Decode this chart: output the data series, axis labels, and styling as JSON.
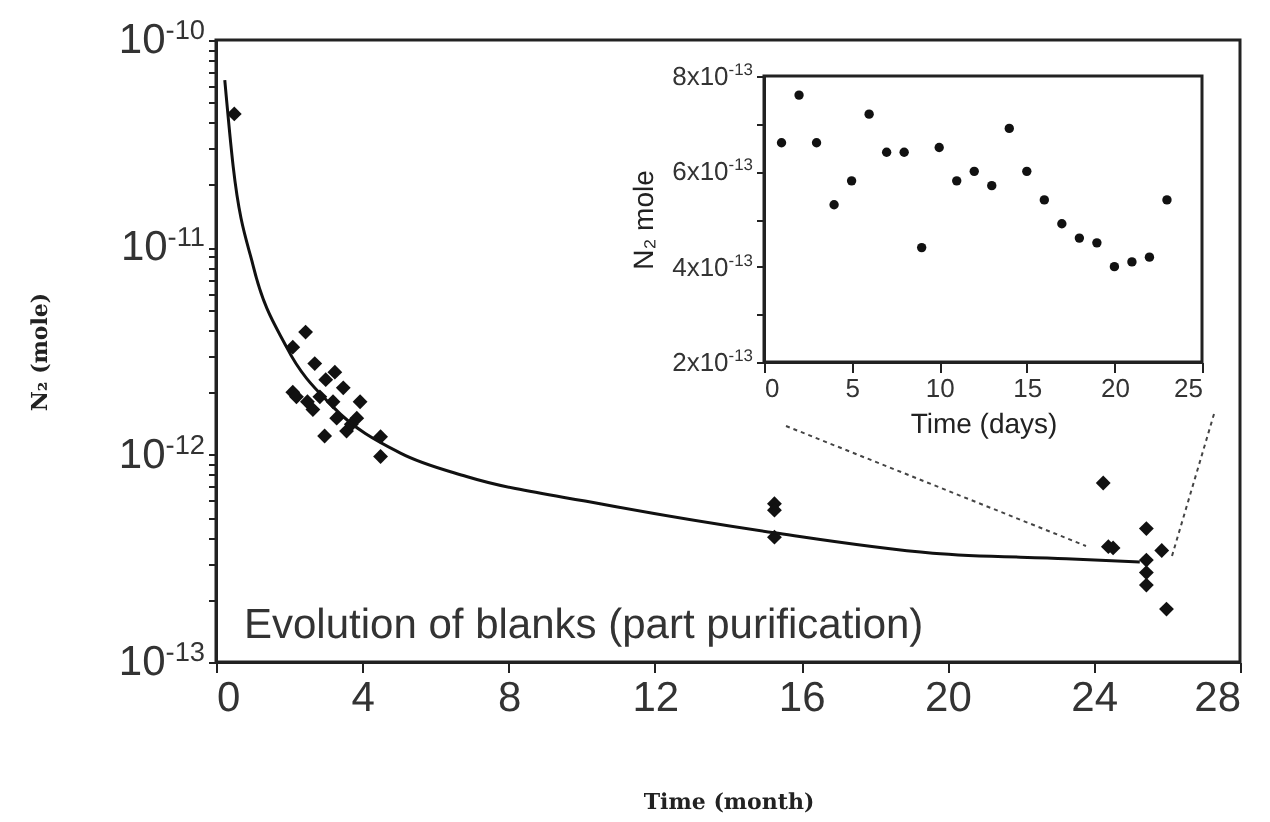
{
  "chart_data": [
    {
      "type": "scatter",
      "xlabel": "Time (month)",
      "ylabel": "N₂ (mole)",
      "annotations": [
        "Evolution of blanks (part purification)"
      ],
      "log": "y",
      "marker": "diamond",
      "xlim": [
        0,
        28
      ],
      "xticks": [
        0,
        4,
        8,
        12,
        16,
        20,
        24,
        28
      ],
      "ylim": [
        1e-13,
        1e-10
      ],
      "yticks": [
        {
          "value": 1e-13,
          "label": "10$^{-13}$"
        },
        {
          "value": 2e-13,
          "label": null
        },
        {
          "value": 3e-13,
          "label": null
        },
        {
          "value": 4e-13,
          "label": null
        },
        {
          "value": 5e-13,
          "label": null
        },
        {
          "value": 6e-13,
          "label": null
        },
        {
          "value": 7e-13,
          "label": null
        },
        {
          "value": 8e-13,
          "label": null
        },
        {
          "value": 9e-13,
          "label": null
        },
        {
          "value": 1e-12,
          "label": "10$^{-12}$"
        },
        {
          "value": 2e-12,
          "label": null
        },
        {
          "value": 3e-12,
          "label": null
        },
        {
          "value": 4e-12,
          "label": null
        },
        {
          "value": 5e-12,
          "label": null
        },
        {
          "value": 6e-12,
          "label": null
        },
        {
          "value": 7e-12,
          "label": null
        },
        {
          "value": 8e-12,
          "label": null
        },
        {
          "value": 9e-12,
          "label": null
        },
        {
          "value": 1e-11,
          "label": "10$^{-11}$"
        },
        {
          "value": 2e-11,
          "label": null
        },
        {
          "value": 3e-11,
          "label": null
        },
        {
          "value": 4e-11,
          "label": null
        },
        {
          "value": 5e-11,
          "label": null
        },
        {
          "value": 6e-11,
          "label": null
        },
        {
          "value": 7e-11,
          "label": null
        },
        {
          "value": 8e-11,
          "label": null
        },
        {
          "value": 9e-11,
          "label": null
        },
        {
          "value": 1e-10,
          "label": "10$^{-10}$"
        }
      ],
      "series": [
        {
          "type": "scatter",
          "color": "#111111",
          "x": [
            0.5,
            2.1,
            2.45,
            2.1,
            2.2,
            2.5,
            2.7,
            3.0,
            3.25,
            2.65,
            2.97,
            3.2,
            3.48,
            3.3,
            3.57,
            3.85,
            3.94,
            3.7,
            2.84,
            4.5,
            4.5,
            15.27,
            15.27,
            15.27,
            24.26,
            24.4,
            24.53,
            25.44,
            25.44,
            25.44,
            25.44,
            25.86,
            25.99
          ],
          "values": [
            4.4e-11,
            3.3e-12,
            3.9e-12,
            2e-12,
            1.9e-12,
            1.8e-12,
            2.75e-12,
            2.3e-12,
            2.5e-12,
            1.65e-12,
            1.23e-12,
            1.8e-12,
            2.1e-12,
            1.5e-12,
            1.3e-12,
            1.5e-12,
            1.8e-12,
            1.4e-12,
            1.9e-12,
            1.22e-12,
            9.8e-13,
            5.8e-13,
            5.4e-13,
            4e-13,
            7.3e-13,
            3.6e-13,
            3.55e-13,
            4.4e-13,
            3.1e-13,
            2.7e-13,
            2.35e-13,
            3.45e-13,
            1.8e-13
          ]
        },
        {
          "type": "line",
          "marker": "none",
          "color": "#111111",
          "x": [
            0.24,
            0.47,
            1.02,
            1.93,
            3.2,
            5.03,
            6.85,
            10.5,
            15.27,
            19.6,
            23.25,
            25.26
          ],
          "values": [
            6.4e-11,
            2.45e-11,
            8.1e-12,
            3.3e-12,
            1.7e-12,
            1.02e-12,
            7.85e-13,
            5.8e-13,
            4.2e-13,
            3.35e-13,
            3.15e-13,
            3.04e-13
          ]
        }
      ]
    },
    {
      "type": "scatter",
      "xlabel": "Time (days)",
      "ylabel": "N₂ mole",
      "marker": "circle",
      "xlim": [
        0,
        25
      ],
      "xticks": [
        0,
        5,
        10,
        15,
        20,
        25
      ],
      "ylim": [
        2e-13,
        8e-13
      ],
      "yticks": [
        {
          "value": 2e-13,
          "label": "2x10$^{-13}$"
        },
        {
          "value": 3e-13,
          "label": null
        },
        {
          "value": 4e-13,
          "label": "4x10$^{-13}$"
        },
        {
          "value": 5e-13,
          "label": null
        },
        {
          "value": 6e-13,
          "label": "6x10$^{-13}$"
        },
        {
          "value": 7e-13,
          "label": null
        },
        {
          "value": 8e-13,
          "label": "8x10$^{-13}$"
        }
      ],
      "series": [
        {
          "color": "#111111",
          "x": [
            1,
            2,
            3,
            4,
            5,
            6,
            7,
            8,
            9,
            10,
            11,
            12,
            13,
            14,
            15,
            16,
            17,
            18,
            19,
            20,
            21,
            22,
            23
          ],
          "values": [
            6.6e-13,
            7.6e-13,
            6.6e-13,
            5.3e-13,
            5.8e-13,
            7.2e-13,
            6.4e-13,
            6.4e-13,
            4.4e-13,
            6.5e-13,
            5.8e-13,
            6e-13,
            5.7e-13,
            6.9e-13,
            6e-13,
            5.4e-13,
            4.9e-13,
            4.6e-13,
            4.5e-13,
            4e-13,
            4.1e-13,
            4.2e-13,
            5.4e-13
          ]
        }
      ]
    }
  ]
}
